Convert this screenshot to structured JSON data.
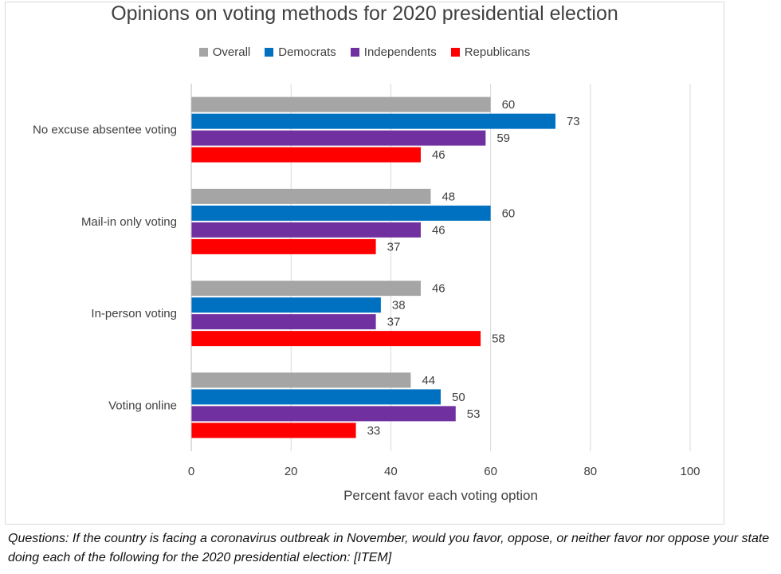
{
  "chart_data": {
    "type": "bar",
    "orientation": "horizontal",
    "title": "Opinions on voting methods for 2020 presidential election",
    "xlabel": "Percent favor each voting option",
    "ylabel": "",
    "xlim": [
      0,
      100
    ],
    "xticks": [
      0,
      20,
      40,
      60,
      80,
      100
    ],
    "grid": true,
    "legend_position": "top",
    "categories": [
      "No excuse absentee voting",
      "Mail-in only voting",
      "In-person voting",
      "Voting online"
    ],
    "series": [
      {
        "name": "Overall",
        "color": "#a5a5a5",
        "values": [
          60,
          48,
          46,
          44
        ]
      },
      {
        "name": "Democrats",
        "color": "#0070c0",
        "values": [
          73,
          60,
          38,
          50
        ]
      },
      {
        "name": "Independents",
        "color": "#7030a0",
        "values": [
          59,
          46,
          37,
          53
        ]
      },
      {
        "name": "Republicans",
        "color": "#ff0000",
        "values": [
          46,
          37,
          58,
          33
        ]
      }
    ]
  },
  "caption": "Questions: If the country is facing a coronavirus outbreak in November, would you favor, oppose, or neither favor nor oppose your state doing each of the following for the 2020 presidential election: [ITEM]"
}
